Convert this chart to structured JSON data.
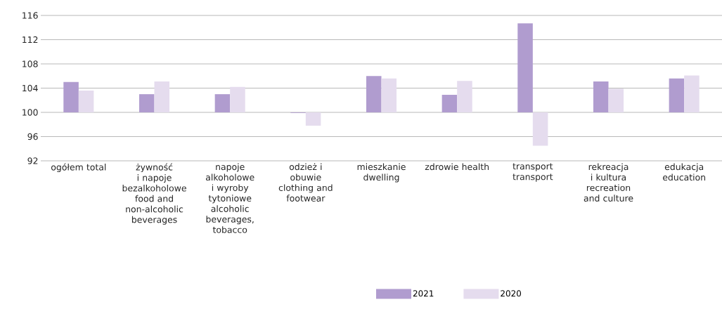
{
  "chart_data": {
    "type": "bar",
    "categories": [
      "ogółem total",
      "żywność i napoje bezalkoholowe food and non-alcoholic beverages",
      "napoje alkoholowe i wyroby tytoniowe alcoholic beverages, tobacco",
      "odzież i obuwie clothing and footwear",
      "mieszkanie dwelling",
      "zdrowie health",
      "transport transport",
      "rekreacja i kultura recreation and culture",
      "edukacja education"
    ],
    "series": [
      {
        "name": "2021",
        "color": "#b09ccf",
        "values": [
          5.0,
          3.0,
          3.0,
          -0.1,
          6.0,
          2.9,
          14.7,
          5.1,
          5.6
        ],
        "base": [
          100,
          100,
          100,
          100,
          100,
          100,
          100,
          100,
          100
        ]
      },
      {
        "name": "2020",
        "color": "#e5dcee",
        "values": [
          3.6,
          5.1,
          4.2,
          -2.2,
          5.6,
          5.2,
          -5.5,
          3.9,
          6.1
        ],
        "base": [
          100,
          100,
          100,
          100,
          100,
          100,
          100,
          100,
          100
        ]
      }
    ],
    "ylim": [
      92,
      116
    ],
    "yticks": [
      92,
      96,
      100,
      104,
      108,
      112,
      116
    ],
    "grid": "y",
    "legend": "bottom"
  }
}
